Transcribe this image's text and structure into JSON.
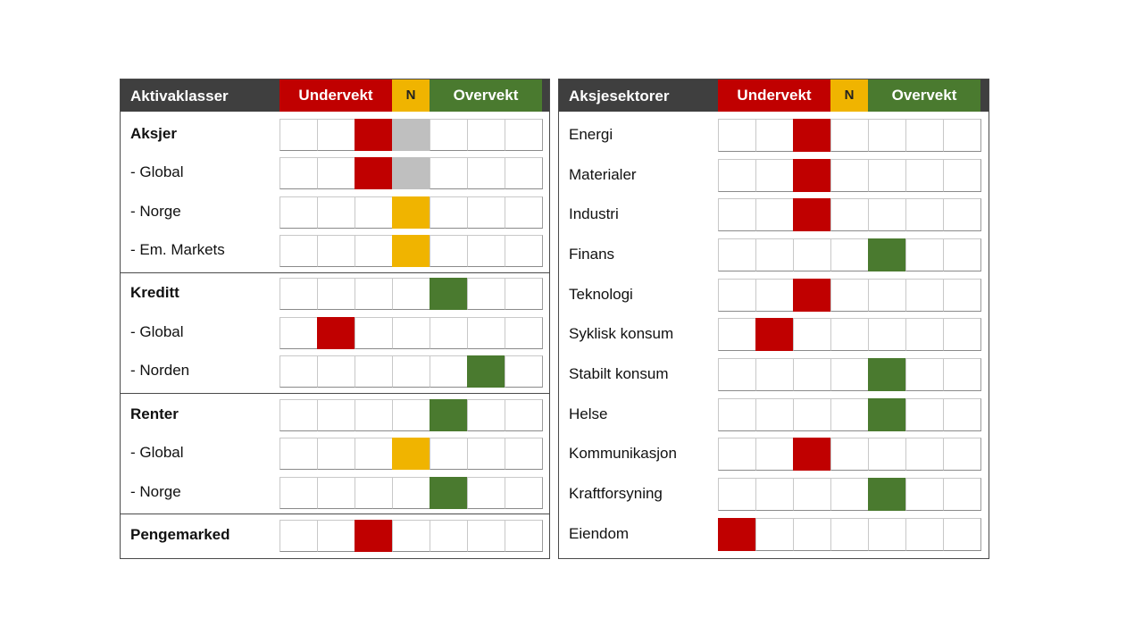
{
  "chart_data": [
    {
      "type": "table",
      "header": {
        "title": "Aktivaklasser",
        "under": "Undervekt",
        "neutral": "N",
        "over": "Overvekt"
      },
      "columns": 7,
      "rows": [
        {
          "label": "Aksjer",
          "bold": true,
          "cells": [
            {
              "col": 2,
              "color": "red"
            },
            {
              "col": 3,
              "color": "gray"
            }
          ]
        },
        {
          "label": "- Global",
          "bold": false,
          "cells": [
            {
              "col": 2,
              "color": "red"
            },
            {
              "col": 3,
              "color": "gray"
            }
          ]
        },
        {
          "label": "- Norge",
          "bold": false,
          "cells": [
            {
              "col": 3,
              "color": "yellow"
            }
          ]
        },
        {
          "label": "- Em. Markets",
          "bold": false,
          "cells": [
            {
              "col": 3,
              "color": "yellow"
            }
          ]
        },
        {
          "label": "Kreditt",
          "bold": true,
          "cells": [
            {
              "col": 4,
              "color": "green"
            }
          ]
        },
        {
          "label": "- Global",
          "bold": false,
          "cells": [
            {
              "col": 1,
              "color": "red"
            }
          ]
        },
        {
          "label": "- Norden",
          "bold": false,
          "cells": [
            {
              "col": 5,
              "color": "green"
            }
          ]
        },
        {
          "label": "Renter",
          "bold": true,
          "cells": [
            {
              "col": 4,
              "color": "green"
            }
          ]
        },
        {
          "label": "- Global",
          "bold": false,
          "cells": [
            {
              "col": 3,
              "color": "yellow"
            }
          ]
        },
        {
          "label": "- Norge",
          "bold": false,
          "cells": [
            {
              "col": 4,
              "color": "green"
            }
          ]
        },
        {
          "label": "Pengemarked",
          "bold": true,
          "cells": [
            {
              "col": 2,
              "color": "red"
            }
          ]
        }
      ]
    },
    {
      "type": "table",
      "header": {
        "title": "Aksjesektorer",
        "under": "Undervekt",
        "neutral": "N",
        "over": "Overvekt"
      },
      "columns": 7,
      "rows": [
        {
          "label": "Energi",
          "bold": false,
          "cells": [
            {
              "col": 2,
              "color": "red"
            }
          ]
        },
        {
          "label": "Materialer",
          "bold": false,
          "cells": [
            {
              "col": 2,
              "color": "red"
            }
          ]
        },
        {
          "label": "Industri",
          "bold": false,
          "cells": [
            {
              "col": 2,
              "color": "red"
            }
          ]
        },
        {
          "label": "Finans",
          "bold": false,
          "cells": [
            {
              "col": 4,
              "color": "green"
            }
          ]
        },
        {
          "label": "Teknologi",
          "bold": false,
          "cells": [
            {
              "col": 2,
              "color": "red"
            }
          ]
        },
        {
          "label": "Syklisk konsum",
          "bold": false,
          "cells": [
            {
              "col": 1,
              "color": "red"
            }
          ]
        },
        {
          "label": "Stabilt konsum",
          "bold": false,
          "cells": [
            {
              "col": 4,
              "color": "green"
            }
          ]
        },
        {
          "label": "Helse",
          "bold": false,
          "cells": [
            {
              "col": 4,
              "color": "green"
            }
          ]
        },
        {
          "label": "Kommunikasjon",
          "bold": false,
          "cells": [
            {
              "col": 2,
              "color": "red"
            }
          ]
        },
        {
          "label": "Kraftforsyning",
          "bold": false,
          "cells": [
            {
              "col": 4,
              "color": "green"
            }
          ]
        },
        {
          "label": "Eiendom",
          "bold": false,
          "cells": [
            {
              "col": 0,
              "color": "red"
            }
          ]
        }
      ]
    }
  ],
  "colors": {
    "red": "#c00000",
    "gray": "#bfbfbf",
    "yellow": "#f0b400",
    "green": "#4a7a2f",
    "header_bg": "#3f3f3f"
  }
}
